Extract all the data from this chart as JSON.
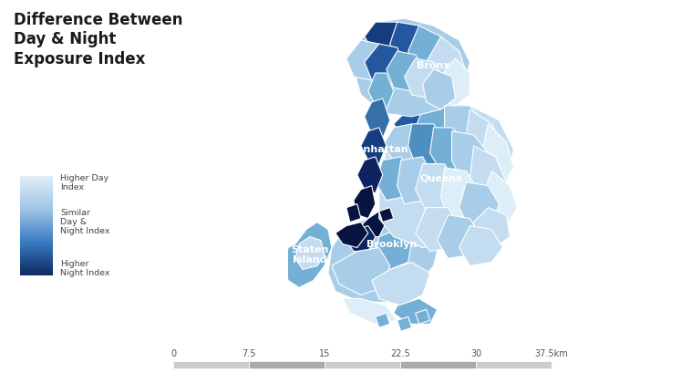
{
  "title": "Difference Between\nDay & Night\nExposure Index",
  "legend_labels": [
    "Higher Day\nIndex",
    "Similar\nDay &\nNight Index",
    "Higher\nNight Index"
  ],
  "scale_ticks": [
    "0",
    "7.5",
    "15",
    "22.5",
    "30",
    "37.5km"
  ],
  "background_color": "#ffffff",
  "title_color": "#1a1a1a",
  "label_color": "#ffffff",
  "c_vlight": "#ddeef8",
  "c_light": "#c4dcf0",
  "c_pale": "#a8cde8",
  "c_sky": "#74afd6",
  "c_med": "#4d8fc0",
  "c_mid": "#3570a8",
  "c_dark": "#2358a0",
  "c_deep": "#163d80",
  "c_navy": "#0d2460",
  "c_vdark": "#071440",
  "figsize": [
    7.47,
    4.2
  ],
  "dpi": 100
}
